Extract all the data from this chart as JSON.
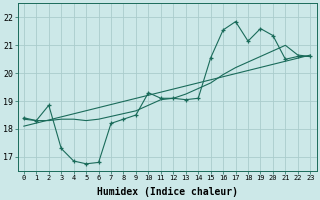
{
  "xlabel": "Humidex (Indice chaleur)",
  "bg_color": "#cce8e8",
  "grid_color": "#aacccc",
  "line_color": "#1a6b5a",
  "xlim": [
    -0.5,
    23.5
  ],
  "ylim": [
    16.5,
    22.5
  ],
  "xticks": [
    0,
    1,
    2,
    3,
    4,
    5,
    6,
    7,
    8,
    9,
    10,
    11,
    12,
    13,
    14,
    15,
    16,
    17,
    18,
    19,
    20,
    21,
    22,
    23
  ],
  "yticks": [
    17,
    18,
    19,
    20,
    21,
    22
  ],
  "line1_x": [
    0,
    1,
    2,
    3,
    4,
    5,
    6,
    7,
    8,
    9,
    10,
    11,
    12,
    13,
    14,
    15,
    16,
    17,
    18,
    19,
    20,
    21,
    22,
    23
  ],
  "line1_y": [
    18.4,
    18.3,
    18.85,
    17.3,
    16.85,
    16.75,
    16.8,
    18.2,
    18.35,
    18.5,
    19.3,
    19.1,
    19.1,
    19.05,
    19.1,
    20.55,
    21.55,
    21.85,
    21.15,
    21.6,
    21.35,
    20.5,
    20.6,
    20.6
  ],
  "line2_x": [
    0,
    1,
    2,
    3,
    4,
    5,
    6,
    7,
    8,
    9,
    10,
    11,
    12,
    13,
    14,
    15,
    16,
    17,
    18,
    19,
    20,
    21,
    22,
    23
  ],
  "line2_y": [
    18.35,
    18.3,
    18.3,
    18.35,
    18.35,
    18.3,
    18.35,
    18.45,
    18.55,
    18.65,
    18.85,
    19.05,
    19.1,
    19.25,
    19.45,
    19.65,
    19.95,
    20.2,
    20.4,
    20.6,
    20.8,
    21.0,
    20.65,
    20.6
  ],
  "line3_x": [
    0,
    23
  ],
  "line3_y": [
    18.1,
    20.65
  ]
}
